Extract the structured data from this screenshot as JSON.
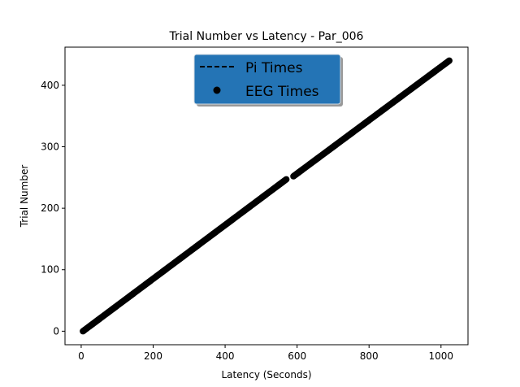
{
  "chart_data": {
    "type": "scatter",
    "title": "Trial Number vs Latency -  Par_006",
    "xlabel": "Latency (Seconds)",
    "ylabel": "Trial Number",
    "xlim": [
      -45,
      1075
    ],
    "ylim": [
      -22,
      462
    ],
    "xticks": [
      0,
      200,
      400,
      600,
      800,
      1000
    ],
    "yticks": [
      0,
      100,
      200,
      300,
      400
    ],
    "grid": false,
    "legend_placement": "upper-center",
    "legend": [
      {
        "label": "Pi Times",
        "marker": "dashed-line",
        "color": "#000000"
      },
      {
        "label": "EEG Times",
        "marker": "circle",
        "color": "#000000"
      }
    ],
    "legend_background": "#2878b5",
    "series": [
      {
        "name": "Pi Times",
        "style": "dashed-line",
        "color": "#000000",
        "segments": [
          {
            "x": [
              5,
              570
            ],
            "y": [
              0,
              247
            ]
          },
          {
            "x": [
              590,
              1023
            ],
            "y": [
              252,
              440
            ]
          }
        ]
      },
      {
        "name": "EEG Times",
        "style": "circle",
        "color": "#000000",
        "segments": [
          {
            "x": [
              5,
              570
            ],
            "y": [
              0,
              247
            ]
          },
          {
            "x": [
              590,
              1023
            ],
            "y": [
              252,
              440
            ]
          }
        ]
      }
    ]
  }
}
